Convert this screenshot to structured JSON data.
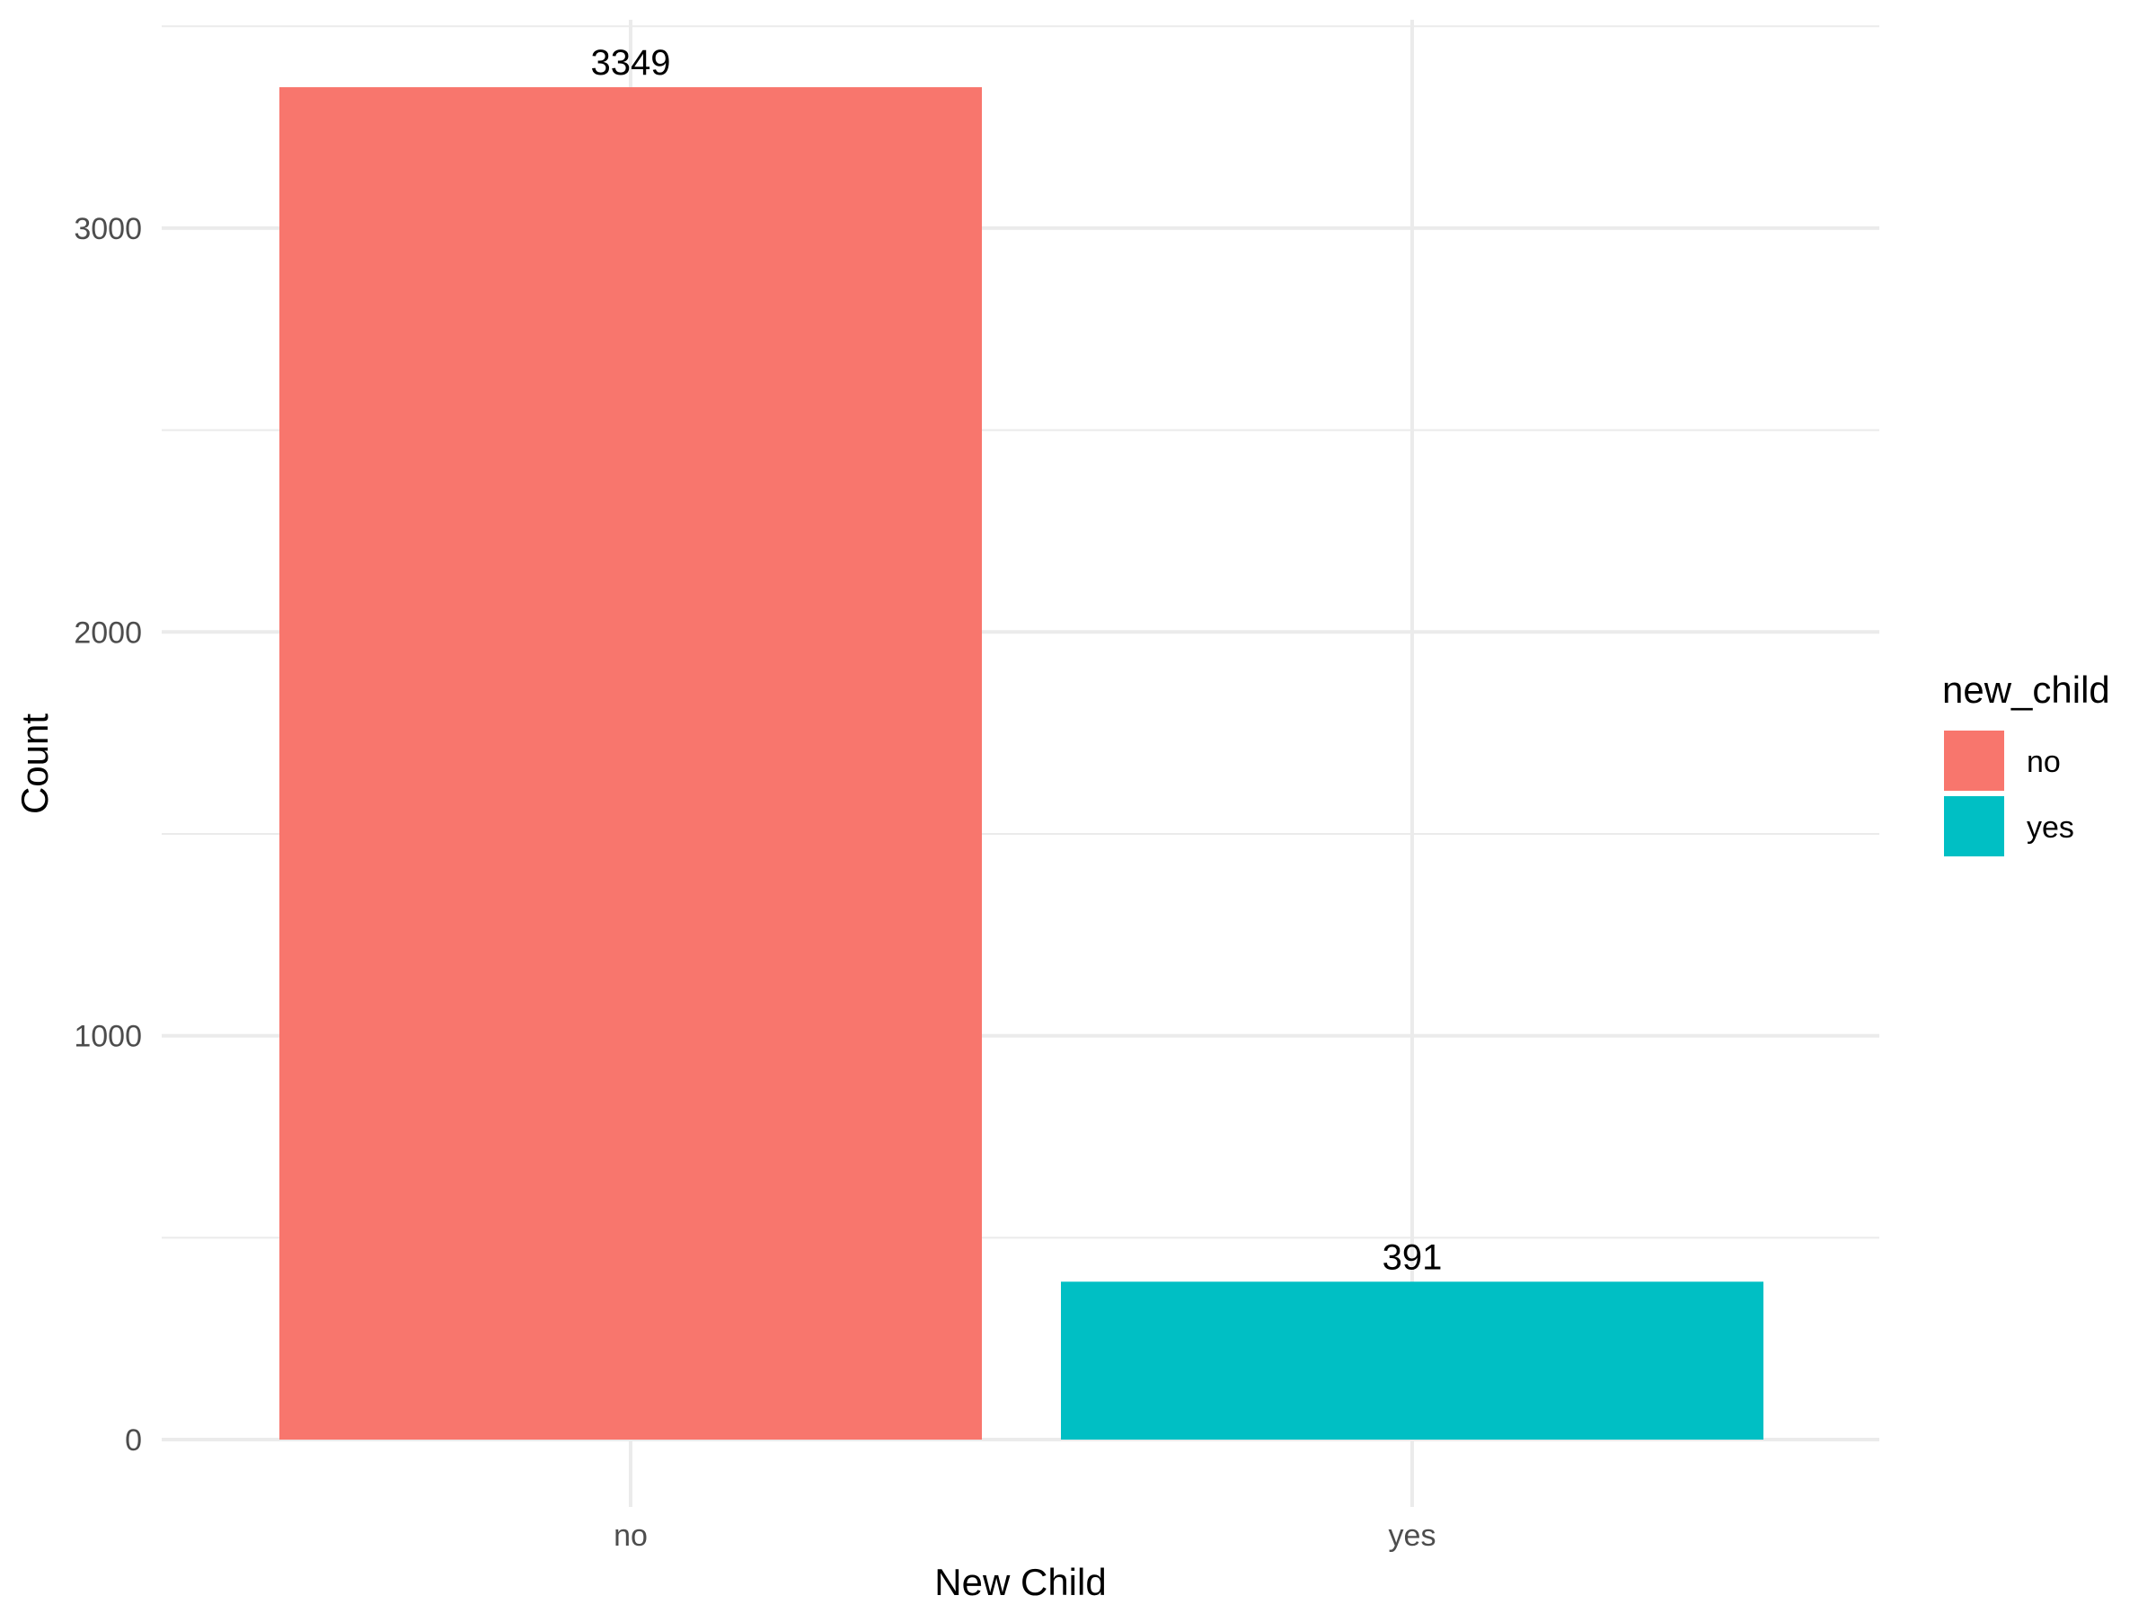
{
  "chart_data": {
    "type": "bar",
    "categories": [
      "no",
      "yes"
    ],
    "values": [
      3349,
      391
    ],
    "data_labels": [
      "3349",
      "391"
    ],
    "colors": [
      "#F8766D",
      "#00BFC4"
    ],
    "title": "",
    "xlabel": "New Child",
    "ylabel": "Count",
    "ylim": [
      0,
      3516
    ],
    "yticks": [
      0,
      1000,
      2000,
      3000
    ],
    "ytick_labels": [
      "0",
      "1000",
      "2000",
      "3000"
    ],
    "grid": true,
    "legend": {
      "title": "new_child",
      "placement": "right",
      "entries": [
        {
          "label": "no",
          "color": "#F8766D"
        },
        {
          "label": "yes",
          "color": "#00BFC4"
        }
      ]
    }
  }
}
